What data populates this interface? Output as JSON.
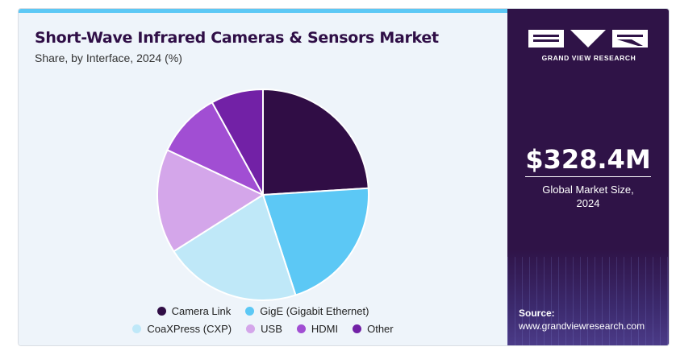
{
  "chart_data": {
    "type": "pie",
    "title": "Short-Wave Infrared Cameras & Sensors Market",
    "subtitle": "Share, by Interface, 2024 (%)",
    "categories": [
      "Camera Link",
      "GigE (Gigabit Ethernet)",
      "CoaXPress (CXP)",
      "USB",
      "HDMI",
      "Other"
    ],
    "values": [
      24,
      21,
      21,
      16,
      10,
      8
    ],
    "colors": [
      "#300d45",
      "#5cc8f5",
      "#bfe8f8",
      "#d4a6ea",
      "#a14ed3",
      "#7221a6"
    ],
    "legend_rows": [
      [
        "Camera Link",
        "GigE (Gigabit Ethernet)"
      ],
      [
        "CoaXPress (CXP)",
        "USB",
        "HDMI",
        "Other"
      ]
    ],
    "legend_position": "bottom"
  },
  "sidebar": {
    "brand": "GRAND VIEW RESEARCH",
    "market_value": "$328.4M",
    "market_caption_line1": "Global Market Size,",
    "market_caption_line2": "2024",
    "source_label": "Source:",
    "source_url": "www.grandviewresearch.com"
  },
  "colors": {
    "left_background": "#eef4fa",
    "accent_stripe": "#5cc8f5",
    "right_background": "#2f1347",
    "title": "#2f0e46"
  }
}
